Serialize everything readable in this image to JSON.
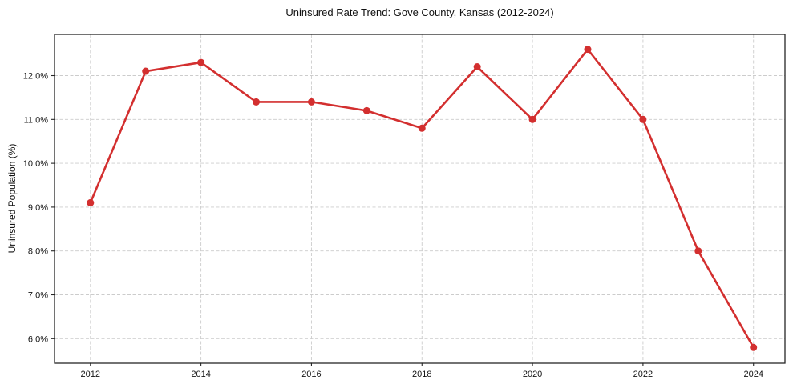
{
  "chart_data": {
    "type": "line",
    "title": "Uninsured Rate Trend: Gove County, Kansas (2012-2024)",
    "xlabel": "",
    "ylabel": "Uninsured Population (%)",
    "x": [
      2012,
      2013,
      2014,
      2015,
      2016,
      2017,
      2018,
      2019,
      2020,
      2021,
      2022,
      2023,
      2024
    ],
    "values": [
      9.1,
      12.1,
      12.3,
      11.4,
      11.4,
      11.2,
      10.8,
      12.2,
      11.0,
      12.6,
      11.0,
      8.0,
      5.8
    ],
    "series": [
      {
        "name": "Uninsured Population (%)",
        "values": [
          9.1,
          12.1,
          12.3,
          11.4,
          11.4,
          11.2,
          10.8,
          12.2,
          11.0,
          12.6,
          11.0,
          8.0,
          5.8
        ]
      }
    ],
    "x_ticks": [
      {
        "value": 2012,
        "label": "2012"
      },
      {
        "value": 2014,
        "label": "2014"
      },
      {
        "value": 2016,
        "label": "2016"
      },
      {
        "value": 2018,
        "label": "2018"
      },
      {
        "value": 2020,
        "label": "2020"
      },
      {
        "value": 2022,
        "label": "2022"
      },
      {
        "value": 2024,
        "label": "2024"
      }
    ],
    "y_ticks": [
      {
        "value": 6.0,
        "label": "6.0%"
      },
      {
        "value": 7.0,
        "label": "7.0%"
      },
      {
        "value": 8.0,
        "label": "8.0%"
      },
      {
        "value": 9.0,
        "label": "9.0%"
      },
      {
        "value": 10.0,
        "label": "10.0%"
      },
      {
        "value": 11.0,
        "label": "11.0%"
      },
      {
        "value": 12.0,
        "label": "12.0%"
      }
    ],
    "xlim": [
      2011.35,
      2024.57
    ],
    "ylim": [
      5.44,
      12.94
    ],
    "grid": true,
    "legend_position": "none",
    "marker": "circle",
    "line_color": "#d32f2f",
    "grid_color": "#cccccc",
    "axis_color": "#262626",
    "text_color": "#141414",
    "background_color": "#ffffff"
  }
}
